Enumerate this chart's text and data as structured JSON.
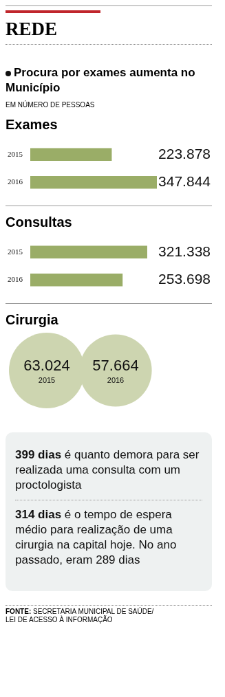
{
  "chart_data": [
    {
      "type": "other",
      "title": "REDE",
      "subtitle": "Procura por exames aumenta no Município",
      "annotations": [
        "EM NÚMERO DE PESSOAS"
      ]
    },
    {
      "type": "bar",
      "orientation": "horizontal",
      "title": "Exames",
      "categories": [
        "2015",
        "2016"
      ],
      "values": [
        223878,
        347844
      ],
      "value_labels": [
        "223.878",
        "347.844"
      ],
      "color": "#9aad67"
    },
    {
      "type": "bar",
      "orientation": "horizontal",
      "title": "Consultas",
      "categories": [
        "2015",
        "2016"
      ],
      "values": [
        321338,
        253698
      ],
      "value_labels": [
        "321.338",
        "253.698"
      ],
      "color": "#9aad67"
    },
    {
      "type": "other",
      "title": "Cirurgia",
      "categories": [
        "2015",
        "2016"
      ],
      "values": [
        63024,
        57664
      ],
      "value_labels": [
        "63.024",
        "57.664"
      ],
      "color": "#cdd5b0"
    },
    {
      "type": "other",
      "annotations": [
        "399 dias é quanto demora para ser realizada uma consulta com um proctologista",
        "314 dias é o tempo de espera médio para realização de uma cirurgia na capital hoje. No ano passado, eram 289 dias",
        "FONTE: SECRETARIA MUNICIPAL DE SAÚDE/ LEI DE ACESSO À INFORMAÇÃO"
      ]
    }
  ]
}
